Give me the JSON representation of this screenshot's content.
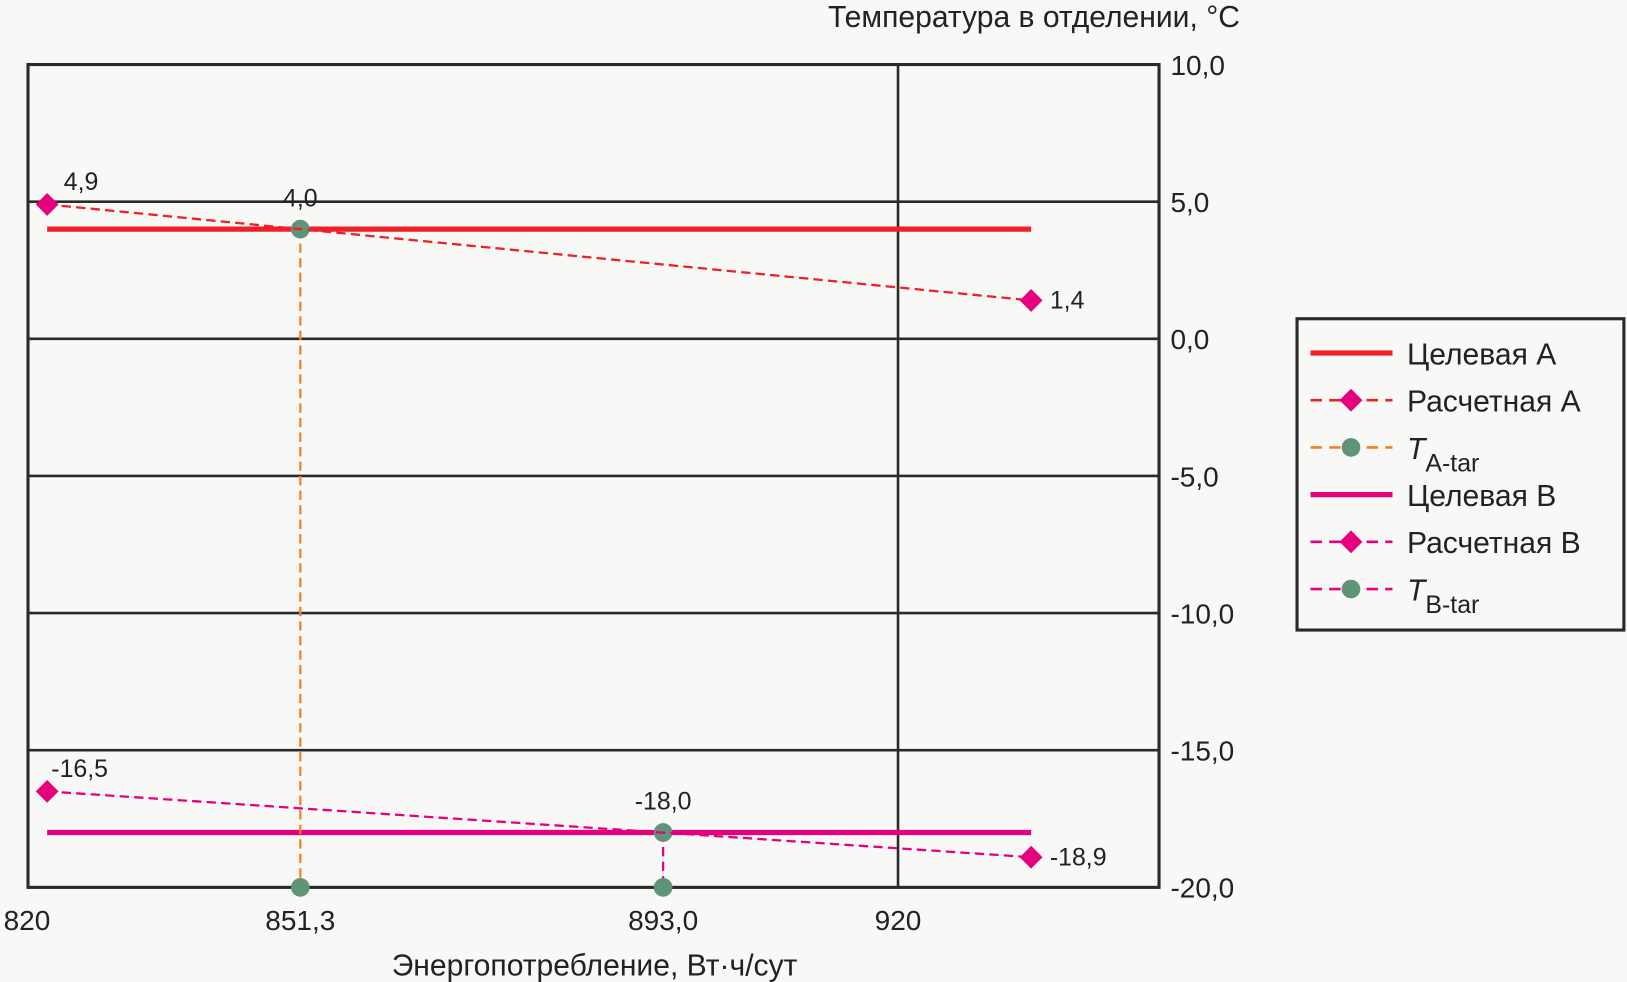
{
  "chart_data": {
    "type": "line",
    "title": "",
    "xlabel": "Энергопотребление, Вт·ч/сут",
    "ylabel": "Температура в отделении, °C",
    "xlim": [
      820,
      950
    ],
    "ylim": [
      -20,
      10
    ],
    "grid": true,
    "x_ticks": [
      {
        "value": 820,
        "label": "820"
      },
      {
        "value": 851.3,
        "label": "851,3"
      },
      {
        "value": 893.0,
        "label": "893,0"
      },
      {
        "value": 920,
        "label": "920"
      }
    ],
    "y_ticks": [
      {
        "value": 10,
        "label": "10,0"
      },
      {
        "value": 5,
        "label": "5,0"
      },
      {
        "value": 0,
        "label": "0,0"
      },
      {
        "value": -5,
        "label": "-5,0"
      },
      {
        "value": -10,
        "label": "-10,0"
      },
      {
        "value": -15,
        "label": "-15,0"
      },
      {
        "value": -20,
        "label": "-20,0"
      }
    ],
    "legend_position": "right",
    "series": [
      {
        "name": "Целевая А",
        "style": "solid",
        "color": "#ee2028",
        "x": [
          822.2,
          935.3
        ],
        "y": [
          4.0,
          4.0
        ]
      },
      {
        "name": "Расчетная А",
        "style": "dashed",
        "marker": "diamond",
        "color": "#ee2028",
        "marker_color": "#e6007e",
        "x": [
          822.2,
          935.3
        ],
        "y": [
          4.9,
          1.4
        ],
        "labels": [
          "4,9",
          "1,4"
        ]
      },
      {
        "name": "T",
        "sub": "A-tar",
        "style": "dashed",
        "marker": "circle",
        "color": "#f58220",
        "marker_color": "#5f9478",
        "x": [
          851.3,
          851.3
        ],
        "y": [
          4.0,
          -20.0
        ],
        "labels": [
          "4,0",
          ""
        ]
      },
      {
        "name": "Целевая В",
        "style": "solid",
        "color": "#e6007e",
        "x": [
          822.2,
          935.3
        ],
        "y": [
          -18.0,
          -18.0
        ]
      },
      {
        "name": "Расчетная В",
        "style": "dashed",
        "marker": "diamond",
        "color": "#e6007e",
        "marker_color": "#e6007e",
        "x": [
          822.2,
          935.3
        ],
        "y": [
          -16.5,
          -18.9
        ],
        "labels": [
          "-16,5",
          "-18,9"
        ]
      },
      {
        "name": "T",
        "sub": "B-tar",
        "style": "dashed",
        "marker": "circle",
        "color": "#e6007e",
        "marker_color": "#5f9478",
        "x": [
          893.0,
          893.0
        ],
        "y": [
          -18.0,
          -20.0
        ],
        "labels": [
          "-18,0",
          ""
        ]
      }
    ]
  }
}
